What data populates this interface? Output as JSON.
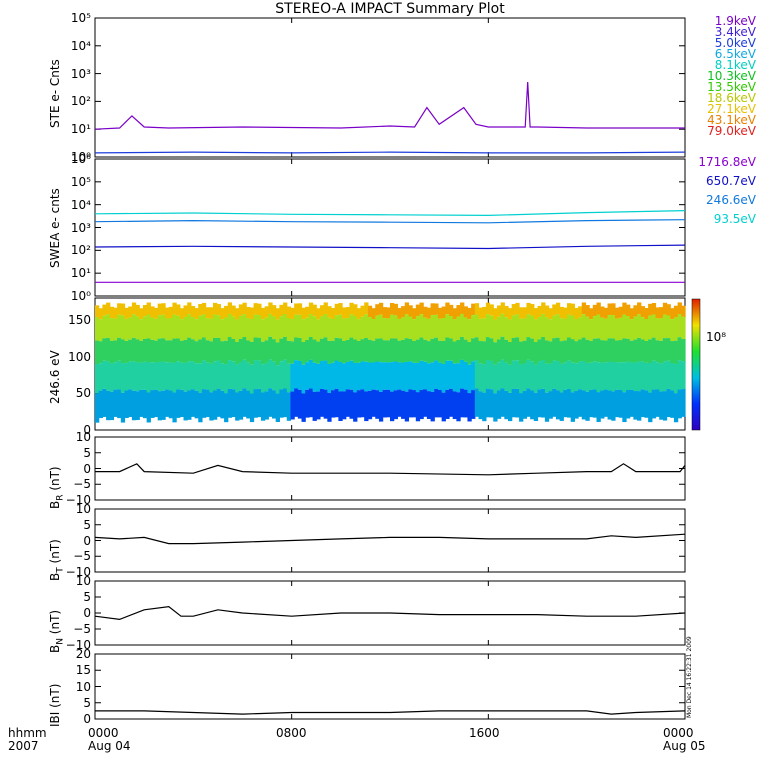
{
  "title": "STEREO-A IMPACT Summary Plot",
  "legend_ste": [
    {
      "label": "1.9keV",
      "color": "#7a00c8"
    },
    {
      "label": "3.4keV",
      "color": "#3f1fd6"
    },
    {
      "label": "5.0keV",
      "color": "#1d3ddc"
    },
    {
      "label": "6.5keV",
      "color": "#10a8e0"
    },
    {
      "label": "8.1keV",
      "color": "#00d0c0"
    },
    {
      "label": "10.3keV",
      "color": "#10c020"
    },
    {
      "label": "13.5keV",
      "color": "#30c800"
    },
    {
      "label": "18.6keV",
      "color": "#b8c800"
    },
    {
      "label": "27.1keV",
      "color": "#e8c000"
    },
    {
      "label": "43.1keV",
      "color": "#e88000"
    },
    {
      "label": "79.0keV",
      "color": "#e02020"
    }
  ],
  "legend_swea": [
    {
      "label": "1716.8eV",
      "color": "#8a00d0"
    },
    {
      "label": "650.7eV",
      "color": "#1010c8"
    },
    {
      "label": "246.6eV",
      "color": "#1078e0"
    },
    {
      "label": "93.5eV",
      "color": "#00d0d0"
    }
  ],
  "colorbar_label": "10⁸",
  "stamp": "Mon Dec 14 16:22:31 2009",
  "x_axis": {
    "left_labels": [
      "hhmm",
      "2007"
    ],
    "ticks": [
      {
        "top": "0000",
        "bottom": "Aug 04"
      },
      {
        "top": "0800",
        "bottom": ""
      },
      {
        "top": "1600",
        "bottom": ""
      },
      {
        "top": "0000",
        "bottom": "Aug 05"
      }
    ]
  },
  "chart_data": [
    {
      "type": "line",
      "ylabel": "STE e- Cnts",
      "yscale": "log",
      "ylim": [
        1,
        100000
      ],
      "yticks": [
        "10⁰",
        "10¹",
        "10²",
        "10³",
        "10⁴",
        "10⁵"
      ],
      "xlim_hours": [
        0,
        24
      ],
      "series": [
        {
          "name": "1.9keV",
          "color": "#7a00c8",
          "x": [
            0,
            1,
            1.5,
            2,
            3,
            6,
            10,
            12,
            13,
            13.5,
            14,
            15,
            15.5,
            16,
            17.5,
            17.6,
            17.7,
            18,
            20,
            22,
            24
          ],
          "y": [
            10,
            11,
            30,
            12,
            11,
            12,
            11,
            13,
            12,
            60,
            15,
            60,
            15,
            12,
            12,
            500,
            12,
            12,
            11,
            11,
            11
          ]
        },
        {
          "name": "5.0keV",
          "color": "#1d3ddc",
          "x": [
            0,
            4,
            8,
            12,
            16,
            20,
            24
          ],
          "y": [
            1.4,
            1.5,
            1.4,
            1.5,
            1.4,
            1.4,
            1.5
          ]
        }
      ]
    },
    {
      "type": "line",
      "ylabel": "SWEA e- cnts",
      "yscale": "log",
      "ylim": [
        1,
        1000000
      ],
      "yticks": [
        "10⁰",
        "10¹",
        "10²",
        "10³",
        "10⁴",
        "10⁵",
        "10⁶"
      ],
      "xlim_hours": [
        0,
        24
      ],
      "series": [
        {
          "name": "93.5eV",
          "color": "#00d0d0",
          "x": [
            0,
            4,
            8,
            12,
            16,
            20,
            24
          ],
          "y": [
            4000,
            4300,
            3800,
            3600,
            3400,
            4500,
            5500
          ]
        },
        {
          "name": "246.6eV",
          "color": "#1078e0",
          "x": [
            0,
            4,
            8,
            12,
            16,
            20,
            24
          ],
          "y": [
            1800,
            2000,
            1800,
            1700,
            1600,
            2000,
            2200
          ]
        },
        {
          "name": "650.7eV",
          "color": "#1010c8",
          "x": [
            0,
            4,
            8,
            12,
            16,
            20,
            24
          ],
          "y": [
            140,
            150,
            140,
            130,
            120,
            150,
            170
          ]
        },
        {
          "name": "1716.8eV",
          "color": "#8a00d0",
          "x": [
            0,
            4,
            8,
            12,
            16,
            20,
            24
          ],
          "y": [
            4,
            4,
            4,
            4,
            4,
            4,
            4
          ]
        }
      ]
    },
    {
      "type": "heatmap",
      "ylabel": "246.6 eV",
      "ylim": [
        0,
        180
      ],
      "yticks": [
        "0",
        "50",
        "100",
        "150"
      ],
      "xlim_hours": [
        0,
        24
      ],
      "colormap": "rainbow"
    },
    {
      "type": "line",
      "ylabel": "BR (nT)",
      "label_base": "B",
      "label_sub": "R",
      "label_tail": " (nT)",
      "ylim": [
        -10,
        10
      ],
      "yticks": [
        "10",
        "5",
        "0",
        "−5",
        "−10"
      ],
      "xlim_hours": [
        0,
        24
      ],
      "series": [
        {
          "color": "#000000",
          "x": [
            0,
            1,
            1.7,
            2,
            4,
            5,
            6,
            8,
            12,
            16,
            18,
            20,
            21,
            21.5,
            22,
            23,
            23.8,
            24
          ],
          "y": [
            -1,
            -1,
            1.5,
            -1,
            -1.5,
            1,
            -1,
            -1.5,
            -1.5,
            -2,
            -1.5,
            -1,
            -1,
            1.5,
            -1,
            -1,
            -1,
            1
          ]
        }
      ]
    },
    {
      "type": "line",
      "ylabel": "BT (nT)",
      "label_base": "B",
      "label_sub": "T",
      "label_tail": " (nT)",
      "ylim": [
        -10,
        10
      ],
      "yticks": [
        "10",
        "5",
        "0",
        "−5",
        "−10"
      ],
      "xlim_hours": [
        0,
        24
      ],
      "series": [
        {
          "color": "#000000",
          "x": [
            0,
            1,
            2,
            3,
            4,
            6,
            8,
            10,
            12,
            14,
            16,
            18,
            20,
            21,
            22,
            24
          ],
          "y": [
            1,
            0.5,
            1,
            -1,
            -1,
            -0.5,
            0,
            0.5,
            1,
            1,
            0.5,
            0.5,
            0.5,
            1.5,
            1,
            2
          ]
        }
      ]
    },
    {
      "type": "line",
      "ylabel": "BN (nT)",
      "label_base": "B",
      "label_sub": "N",
      "label_tail": " (nT)",
      "ylim": [
        -10,
        10
      ],
      "yticks": [
        "10",
        "5",
        "0",
        "−5",
        "−10"
      ],
      "xlim_hours": [
        0,
        24
      ],
      "series": [
        {
          "color": "#000000",
          "x": [
            0,
            1,
            2,
            3,
            3.5,
            4,
            5,
            6,
            8,
            10,
            12,
            14,
            16,
            18,
            20,
            22,
            24
          ],
          "y": [
            -1,
            -2,
            1,
            2,
            -1,
            -1,
            1,
            0,
            -1,
            0,
            0,
            -0.5,
            -0.5,
            -0.5,
            -1,
            -1,
            0
          ]
        }
      ]
    },
    {
      "type": "line",
      "ylabel": "|B| (nT)",
      "label_base": "IBI",
      "label_sub": "",
      "label_tail": " (nT)",
      "ylim": [
        0,
        20
      ],
      "yticks": [
        "20",
        "15",
        "10",
        "5",
        "0"
      ],
      "xlim_hours": [
        0,
        24
      ],
      "series": [
        {
          "color": "#000000",
          "x": [
            0,
            2,
            4,
            6,
            8,
            10,
            12,
            14,
            16,
            18,
            20,
            21,
            22,
            24
          ],
          "y": [
            2.5,
            2.5,
            2,
            1.5,
            2,
            2,
            2,
            2.5,
            2.5,
            2.5,
            2.5,
            1.5,
            2,
            2.5
          ]
        }
      ]
    }
  ]
}
